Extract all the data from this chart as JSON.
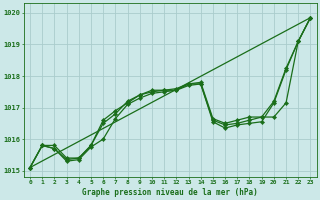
{
  "title": "Graphe pression niveau de la mer (hPa)",
  "xlim": [
    -0.5,
    23.5
  ],
  "ylim": [
    1014.8,
    1020.3
  ],
  "yticks": [
    1015,
    1016,
    1017,
    1018,
    1019,
    1020
  ],
  "xticks": [
    0,
    1,
    2,
    3,
    4,
    5,
    6,
    7,
    8,
    9,
    10,
    11,
    12,
    13,
    14,
    15,
    16,
    17,
    18,
    19,
    20,
    21,
    22,
    23
  ],
  "bg_color": "#cce8e8",
  "grid_color": "#aacccc",
  "line_color": "#1a6e1a",
  "smooth_line_x": [
    0,
    23
  ],
  "smooth_line_y": [
    1015.1,
    1019.85
  ],
  "line1_x": [
    0,
    1,
    2,
    3,
    4,
    5,
    6,
    7,
    8,
    9,
    10,
    11,
    12,
    13,
    14,
    15,
    16,
    17,
    18,
    19,
    20,
    21,
    22,
    23
  ],
  "line1_y": [
    1015.1,
    1015.8,
    1015.8,
    1015.4,
    1015.4,
    1015.8,
    1016.6,
    1016.9,
    1017.15,
    1017.4,
    1017.55,
    1017.55,
    1017.55,
    1017.75,
    1017.75,
    1016.6,
    1016.45,
    1016.5,
    1016.6,
    1016.7,
    1016.7,
    1017.15,
    1019.1,
    1019.85
  ],
  "line2_x": [
    0,
    1,
    2,
    3,
    4,
    5,
    6,
    7,
    8,
    9,
    10,
    11,
    12,
    13,
    14,
    15,
    16,
    17,
    18,
    19,
    20,
    21,
    22,
    23
  ],
  "line2_y": [
    1015.1,
    1015.8,
    1015.7,
    1015.3,
    1015.35,
    1015.75,
    1016.0,
    1016.65,
    1017.1,
    1017.3,
    1017.45,
    1017.5,
    1017.55,
    1017.7,
    1017.75,
    1016.55,
    1016.35,
    1016.45,
    1016.5,
    1016.55,
    1017.15,
    1018.2,
    1019.1,
    1019.85
  ],
  "line3_x": [
    0,
    1,
    2,
    3,
    4,
    5,
    6,
    7,
    8,
    9,
    10,
    11,
    12,
    13,
    14,
    15,
    16,
    17,
    18,
    19,
    20,
    21,
    22,
    23
  ],
  "line3_y": [
    1015.1,
    1015.8,
    1015.7,
    1015.35,
    1015.4,
    1015.8,
    1016.5,
    1016.8,
    1017.2,
    1017.4,
    1017.5,
    1017.55,
    1017.6,
    1017.75,
    1017.8,
    1016.65,
    1016.5,
    1016.6,
    1016.7,
    1016.7,
    1017.2,
    1018.25,
    1019.1,
    1019.85
  ]
}
